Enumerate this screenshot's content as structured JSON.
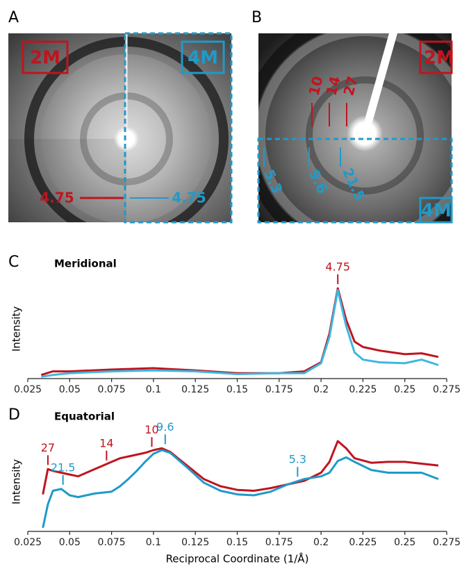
{
  "images": [
    {
      "panel": "A",
      "left_box": "2M",
      "right_box": "4M",
      "left_spacing": "4.75",
      "right_spacing": "4.75"
    },
    {
      "panel": "B",
      "top_box": "2M",
      "bottom_box": "4M",
      "top_spacings": [
        "10",
        "14",
        "27"
      ],
      "bottom_spacings": [
        "5.3",
        "9.6",
        "21.5"
      ]
    }
  ],
  "chart_data": [
    {
      "type": "line",
      "panel": "C",
      "title": "Meridional",
      "y_label": "Intensity",
      "x": [
        0.033,
        0.04,
        0.05,
        0.075,
        0.1,
        0.125,
        0.15,
        0.175,
        0.19,
        0.2,
        0.205,
        0.21,
        0.215,
        0.22,
        0.225,
        0.235,
        0.25,
        0.26,
        0.27
      ],
      "series": [
        {
          "color": "#c0141e",
          "values": [
            0.04,
            0.08,
            0.08,
            0.1,
            0.115,
            0.09,
            0.06,
            0.06,
            0.08,
            0.18,
            0.5,
            1.0,
            0.65,
            0.41,
            0.35,
            0.31,
            0.27,
            0.28,
            0.24
          ]
        },
        {
          "color": "#3db8e0",
          "values": [
            0.02,
            0.04,
            0.06,
            0.08,
            0.09,
            0.08,
            0.05,
            0.06,
            0.06,
            0.17,
            0.46,
            0.98,
            0.58,
            0.29,
            0.21,
            0.18,
            0.17,
            0.21,
            0.15
          ]
        }
      ],
      "annotations": [
        {
          "text": "4.75",
          "x": 0.21,
          "y": 1.0,
          "color": "#c0141e"
        }
      ],
      "xlim": [
        0.025,
        0.275
      ],
      "xticks": [
        0.025,
        0.05,
        0.075,
        0.1,
        0.125,
        0.15,
        0.175,
        0.2,
        0.225,
        0.25,
        0.275
      ],
      "ylim": [
        0,
        1.1
      ]
    },
    {
      "type": "line",
      "panel": "D",
      "title": "Equatorial",
      "y_label": "Intensity",
      "x_label": "Reciprocal Coordinate (1/Å)",
      "x": [
        0.034,
        0.037,
        0.04,
        0.045,
        0.05,
        0.055,
        0.06,
        0.065,
        0.07,
        0.075,
        0.08,
        0.085,
        0.09,
        0.095,
        0.1,
        0.105,
        0.11,
        0.12,
        0.13,
        0.14,
        0.15,
        0.16,
        0.17,
        0.18,
        0.19,
        0.2,
        0.205,
        0.21,
        0.215,
        0.22,
        0.23,
        0.24,
        0.25,
        0.26,
        0.27
      ],
      "series": [
        {
          "color": "#c0141e",
          "values": [
            0.41,
            0.69,
            0.67,
            0.65,
            0.63,
            0.61,
            0.65,
            0.69,
            0.73,
            0.77,
            0.81,
            0.83,
            0.85,
            0.87,
            0.9,
            0.92,
            0.88,
            0.73,
            0.58,
            0.5,
            0.46,
            0.45,
            0.48,
            0.52,
            0.56,
            0.65,
            0.77,
            1.0,
            0.92,
            0.81,
            0.76,
            0.77,
            0.77,
            0.75,
            0.73
          ]
        },
        {
          "color": "#1f9ac9",
          "values": [
            0.04,
            0.3,
            0.45,
            0.47,
            0.4,
            0.38,
            0.4,
            0.42,
            0.43,
            0.44,
            0.5,
            0.58,
            0.67,
            0.77,
            0.86,
            0.9,
            0.87,
            0.71,
            0.54,
            0.45,
            0.41,
            0.4,
            0.44,
            0.52,
            0.58,
            0.61,
            0.65,
            0.78,
            0.82,
            0.77,
            0.68,
            0.65,
            0.65,
            0.65,
            0.58
          ]
        }
      ],
      "annotations": [
        {
          "text": "27",
          "x": 0.037,
          "y": 0.69,
          "color": "#c0141e"
        },
        {
          "text": "21.5",
          "x": 0.046,
          "y": 0.47,
          "color": "#1f9ac9"
        },
        {
          "text": "14",
          "x": 0.072,
          "y": 0.74,
          "color": "#c0141e"
        },
        {
          "text": "10",
          "x": 0.099,
          "y": 0.89,
          "color": "#c0141e"
        },
        {
          "text": "9.6",
          "x": 0.107,
          "y": 0.92,
          "color": "#1f9ac9"
        },
        {
          "text": "5.3",
          "x": 0.186,
          "y": 0.56,
          "color": "#1f9ac9"
        }
      ],
      "xlim": [
        0.025,
        0.275
      ],
      "xticks": [
        0.025,
        0.05,
        0.075,
        0.1,
        0.125,
        0.15,
        0.175,
        0.2,
        0.225,
        0.25,
        0.275
      ],
      "ylim": [
        0,
        1.1
      ]
    }
  ]
}
